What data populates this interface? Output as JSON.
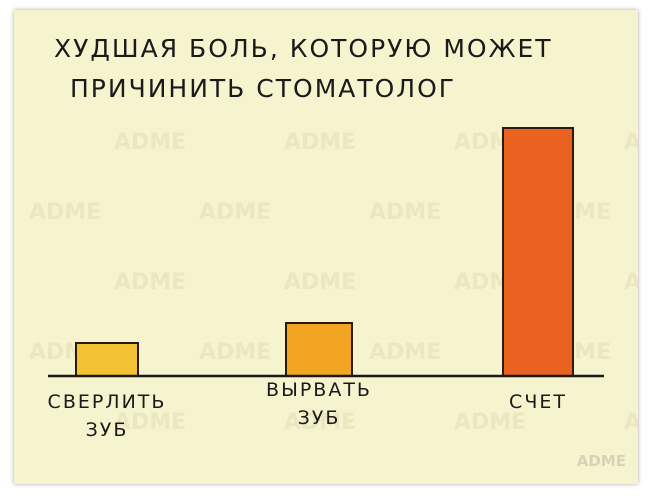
{
  "chart_data": {
    "type": "bar",
    "title_lines": [
      "ХУДШАЯ БОЛЬ, КОТОРУЮ МОЖЕТ",
      "ПРИЧИНИТЬ СТОМАТОЛОГ"
    ],
    "categories": [
      "СВЕРЛИТЬ ЗУБ",
      "ВЫРВАТЬ ЗУБ",
      "СЧЕТ"
    ],
    "values": [
      33,
      53,
      248
    ],
    "colors": [
      "#f2c232",
      "#f2a423",
      "#e9621f"
    ],
    "watermark": "ADME"
  }
}
